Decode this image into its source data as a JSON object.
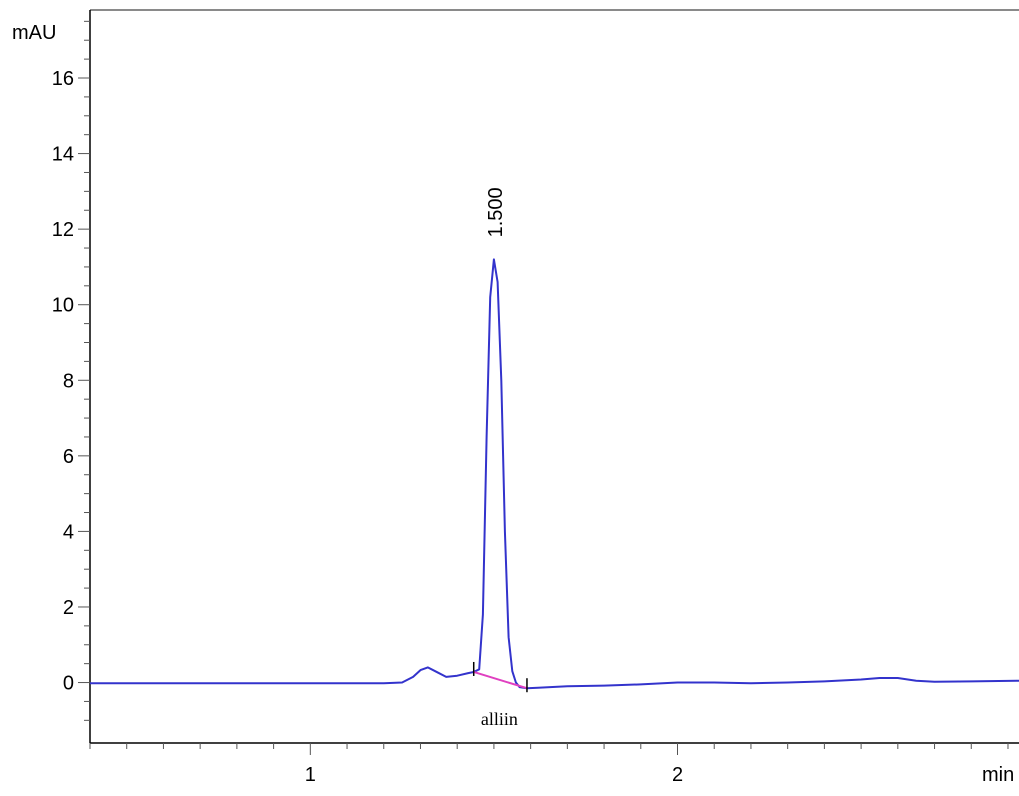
{
  "chart_data": {
    "type": "line",
    "title": "",
    "xlabel": "min",
    "ylabel": "mAU",
    "xlim": [
      0.4,
      2.93
    ],
    "ylim": [
      -1.6,
      17.8
    ],
    "x_ticks": [
      1,
      2
    ],
    "x_tick_labels": [
      "1",
      "2"
    ],
    "y_ticks": [
      0,
      2,
      4,
      6,
      8,
      10,
      12,
      14,
      16
    ],
    "y_tick_labels": [
      "0",
      "2",
      "4",
      "6",
      "8",
      "10",
      "12",
      "14",
      "16"
    ],
    "grid": false,
    "series": [
      {
        "color": "#3333cc",
        "x": [
          0.4,
          0.6,
          0.8,
          1.0,
          1.1,
          1.2,
          1.25,
          1.28,
          1.3,
          1.32,
          1.34,
          1.37,
          1.4,
          1.43,
          1.445,
          1.46,
          1.47,
          1.48,
          1.49,
          1.5,
          1.51,
          1.52,
          1.53,
          1.54,
          1.55,
          1.56,
          1.57,
          1.59,
          1.62,
          1.7,
          1.8,
          1.9,
          2.0,
          2.1,
          2.2,
          2.3,
          2.4,
          2.5,
          2.55,
          2.6,
          2.65,
          2.7,
          2.8,
          2.93
        ],
        "y": [
          -0.02,
          -0.02,
          -0.02,
          -0.02,
          -0.02,
          -0.02,
          0.0,
          0.15,
          0.33,
          0.4,
          0.3,
          0.15,
          0.18,
          0.25,
          0.28,
          0.35,
          1.8,
          6.5,
          10.2,
          11.2,
          10.6,
          8.0,
          4.0,
          1.2,
          0.3,
          0.0,
          -0.12,
          -0.15,
          -0.14,
          -0.1,
          -0.08,
          -0.05,
          0.0,
          0.0,
          -0.02,
          0.0,
          0.03,
          0.08,
          0.12,
          0.12,
          0.05,
          0.02,
          0.03,
          0.05
        ]
      }
    ],
    "baseline": {
      "color": "#e040c0",
      "x": [
        1.445,
        1.59
      ],
      "y": [
        0.28,
        -0.15
      ]
    },
    "integration_markers": [
      1.445,
      1.59
    ],
    "peaks": [
      {
        "x": 1.5,
        "y": 11.2,
        "label": "1.500"
      }
    ],
    "annotations": [
      {
        "x": 1.515,
        "text": "alliin"
      }
    ]
  }
}
